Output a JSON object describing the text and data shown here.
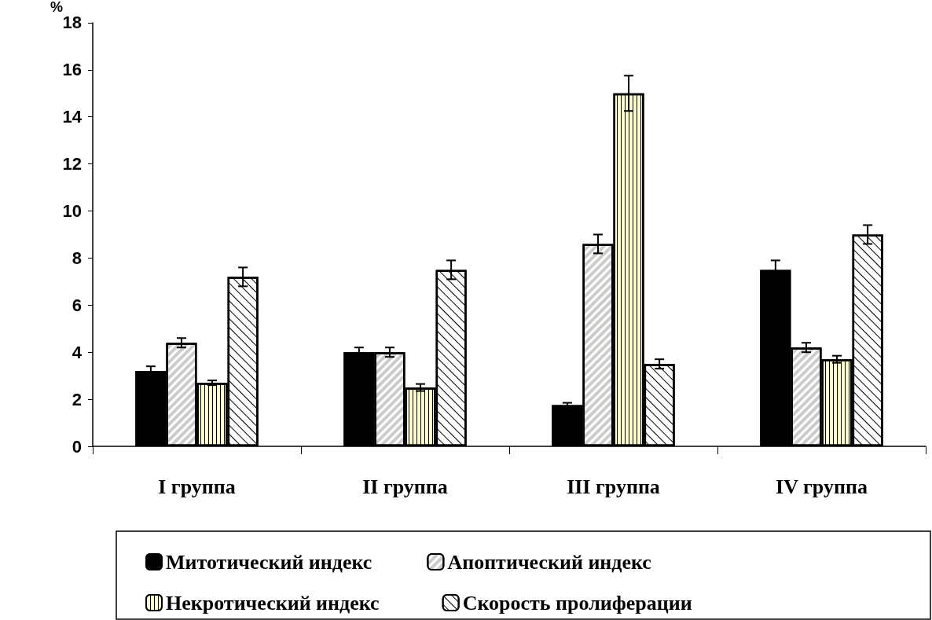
{
  "chart_data": {
    "type": "bar",
    "ylabel": "%",
    "categories": [
      "I группа",
      "II группа",
      "III группа",
      "IV группа"
    ],
    "series": [
      {
        "name": "Митотический индекс",
        "color": "#000000",
        "values": [
          3.2,
          4.0,
          1.75,
          7.5
        ],
        "errors": [
          0.2,
          0.2,
          0.1,
          0.4
        ]
      },
      {
        "name": "Апоптический индекс",
        "color": "#ffffff",
        "values": [
          4.4,
          4.0,
          8.6,
          4.2
        ],
        "errors": [
          0.2,
          0.2,
          0.4,
          0.2
        ]
      },
      {
        "name": "Некротический индекс",
        "color": "#ffffcc",
        "values": [
          2.7,
          2.5,
          15.0,
          3.7
        ],
        "errors": [
          0.1,
          0.15,
          0.75,
          0.15
        ]
      },
      {
        "name": "Скорость пролиферации",
        "color": "#ffffff",
        "values": [
          7.2,
          7.5,
          3.5,
          9.0
        ],
        "errors": [
          0.4,
          0.4,
          0.2,
          0.4
        ]
      }
    ],
    "ylim": [
      0,
      18
    ],
    "yticks": [
      0,
      2,
      4,
      6,
      8,
      10,
      12,
      14,
      16,
      18
    ],
    "grid": false,
    "legend": "bottom"
  }
}
